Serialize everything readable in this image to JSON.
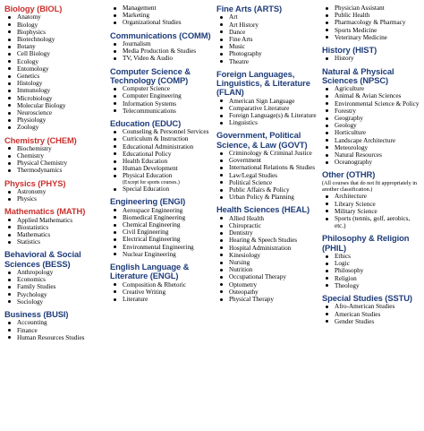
{
  "columns": [
    {
      "sections": [
        {
          "heading": "Biology (BIOL)",
          "color": "#c8322f",
          "items": [
            "Anatomy",
            "Biology",
            "Biophysics",
            "Biotechnology",
            "Botany",
            "Cell Biology",
            "Ecology",
            "Entomology",
            "Genetics",
            "Histology",
            "Immunology",
            "Microbiology",
            "Molecular Biology",
            "Neuroscience",
            "Physiology",
            "Zoology"
          ]
        },
        {
          "heading": "Chemistry (CHEM)",
          "color": "#c8322f",
          "items": [
            "Biochemistry",
            "Chemistry",
            "Physical Chemistry",
            "Thermodynamics"
          ]
        },
        {
          "heading": "Physics (PHYS)",
          "color": "#c8322f",
          "items": [
            "Astronomy",
            "Physics"
          ]
        },
        {
          "heading": "Mathematics (MATH)",
          "color": "#c8322f",
          "items": [
            "Applied Mathematics",
            "Biostatistics",
            "Mathematics",
            "Statistics"
          ]
        },
        {
          "heading": "Behavioral & Social Sciences (BESS)",
          "color": "#1f3d7a",
          "items": [
            "Anthropology",
            "Economics",
            "Family Studies",
            "Psychology",
            "Sociology"
          ]
        },
        {
          "heading": "Business (BUSI)",
          "color": "#1f3d7a",
          "items": [
            "Accounting",
            "Finance",
            "Human Resources Studies"
          ]
        }
      ]
    },
    {
      "sections": [
        {
          "heading": "",
          "color": "#1f3d7a",
          "items": [
            "Management",
            "Marketing",
            "Organizational Studies"
          ]
        },
        {
          "heading": "Communications (COMM)",
          "color": "#1f3d7a",
          "items": [
            "Journalism",
            "Media Production & Studies",
            "TV, Video & Audio"
          ]
        },
        {
          "heading": "Computer Science & Technology (COMP)",
          "color": "#1f3d7a",
          "items": [
            "Computer Science",
            "Computer Engineering",
            "Information Systems",
            "Telecommunications"
          ]
        },
        {
          "heading": "Education (EDUC)",
          "color": "#1f3d7a",
          "items": [
            "Counseling & Personnel Services",
            "Curriculum & Instruction",
            "Educational Administration",
            "Educational Policy",
            "Health Education",
            "Human Development",
            "Physical Education"
          ],
          "item_note": {
            "index": 6,
            "text": "(Except for sports courses.)"
          },
          "items_after": [
            "Special Education"
          ]
        },
        {
          "heading": "Engineering (ENGI)",
          "color": "#1f3d7a",
          "items": [
            "Aerospace Engineering",
            "Biomedical Engineering",
            "Chemical Engineering",
            "Civil Engineering",
            "Electrical Engineering",
            "Environmental Engineering",
            "Nuclear Engineering"
          ]
        },
        {
          "heading": "English Language & Literature (ENGL)",
          "color": "#1f3d7a",
          "items": [
            "Composition & Rhetoric",
            "Creative Writing",
            "Literature"
          ]
        }
      ]
    },
    {
      "sections": [
        {
          "heading": "Fine Arts (ARTS)",
          "color": "#1f3d7a",
          "items": [
            "Art",
            "Art History",
            "Dance",
            "Fine Arts",
            "Music",
            "Photography",
            "Theatre"
          ]
        },
        {
          "heading": "Foreign Languages, Linguistics, & Literature (FLAN)",
          "color": "#1f3d7a",
          "items": [
            "American Sign Language",
            "Comparative Literature",
            "Foreign Language(s) & Literature",
            "Linguistics"
          ]
        },
        {
          "heading": "Government, Political Science, & Law (GOVT)",
          "color": "#1f3d7a",
          "items": [
            "Criminology & Criminal Justice",
            "Government",
            "International Relations & Studies",
            "Law/Legal Studies",
            "Political Science",
            "Public Affairs & Policy",
            "Urban Policy & Planning"
          ]
        },
        {
          "heading": "Health Sciences (HEAL)",
          "color": "#1f3d7a",
          "items": [
            "Allied Health",
            "Chiropractic",
            "Dentistry",
            "Hearing & Speech Studies",
            "Hospital Administration",
            "Kinesiology",
            "Nursing",
            "Nutrition",
            "Occupational Therapy",
            "Optometry",
            "Osteopathy",
            "Physical Therapy"
          ]
        }
      ]
    },
    {
      "sections": [
        {
          "heading": "",
          "color": "#1f3d7a",
          "items": [
            "Physician Assistant",
            "Public Health",
            "Pharmacology & Pharmacy",
            "Sports Medicine",
            "Veterinary Medicine"
          ]
        },
        {
          "heading": "History (HIST)",
          "color": "#1f3d7a",
          "items": [
            "History"
          ]
        },
        {
          "heading": "Natural & Physical Sciences (NPSC)",
          "color": "#1f3d7a",
          "items": [
            "Agriculture",
            "Animal & Avian Sciences",
            "Environmental Science & Policy",
            "Forestry",
            "Geography",
            "Geology",
            "Horticulture",
            "Landscape Architecture",
            "Meteorology",
            "Natural Resources",
            "Oceanography"
          ]
        },
        {
          "heading": "Other (OTHR)",
          "color": "#1f3d7a",
          "note": "(All courses that do not fit appropriately in another classification.)",
          "items": [
            "Architecture",
            "Library Science",
            "Military Science",
            "Sports (tennis, golf, aerobics, etc.)"
          ]
        },
        {
          "heading": "Philosophy & Religion (PHIL)",
          "color": "#1f3d7a",
          "items": [
            "Ethics",
            "Logic",
            "Philosophy",
            "Religion",
            "Theology"
          ]
        },
        {
          "heading": "Special Studies (SSTU)",
          "color": "#1f3d7a",
          "items": [
            "Afro-American Studies",
            "American Studies",
            "Gender Studies"
          ]
        }
      ]
    }
  ]
}
